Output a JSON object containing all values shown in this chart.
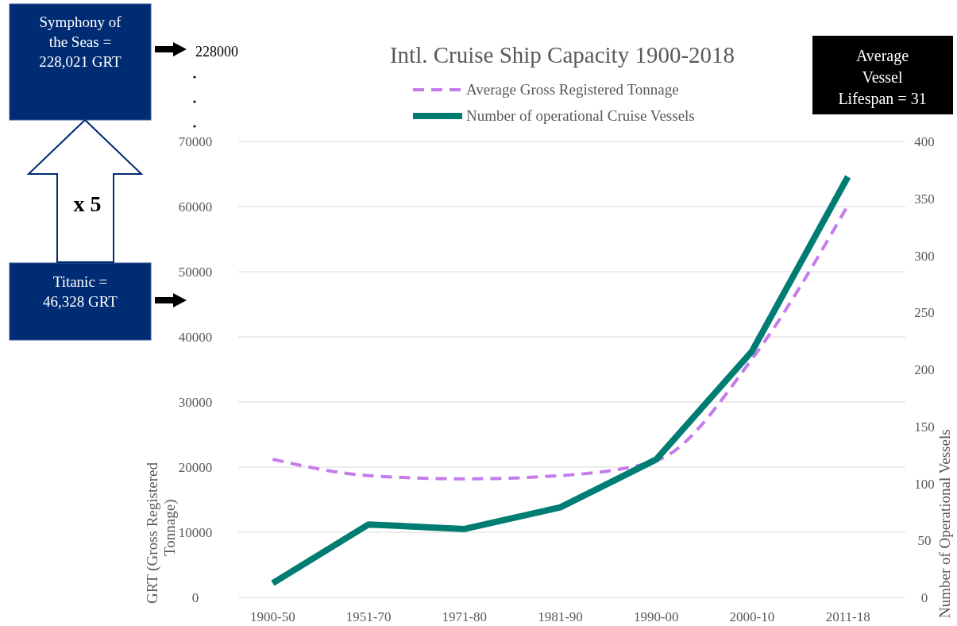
{
  "chart_data": {
    "type": "line",
    "title": "Intl. Cruise Ship Capacity 1900-2018",
    "ylabel": "GRT (Gross Registered Tonnage)",
    "y2label": "Number of Operational Vessels",
    "categories": [
      "1900-50",
      "1951-70",
      "1971-80",
      "1981-90",
      "1990-00",
      "2000-10",
      "2011-18"
    ],
    "series": [
      {
        "name": "Average Gross Registered Tonnage",
        "color": "#c57bea",
        "line_style": "dashed",
        "values": [
          21200,
          18700,
          18200,
          18700,
          21000,
          36600,
          60200
        ]
      },
      {
        "name": "Number of operational Cruise Vessels",
        "color": "#007d72",
        "line_style": "solid",
        "axis": "y2",
        "values": [
          12.5,
          64,
          60,
          79,
          121,
          216,
          369
        ]
      }
    ],
    "ylim": [
      0,
      70000
    ],
    "yticks": [
      0,
      10000,
      20000,
      30000,
      40000,
      50000,
      60000,
      70000
    ],
    "y2lim": [
      0,
      400
    ],
    "y2ticks": [
      0,
      50,
      100,
      150,
      200,
      250,
      300,
      350,
      400
    ],
    "grid": "y",
    "legend": "top",
    "annotations": [
      "Symphony of the Seas = 228,021 GRT",
      "Titanic = 46,328 GRT",
      "x 5",
      "228000",
      "Average Vessel Lifespan = 31"
    ]
  }
}
